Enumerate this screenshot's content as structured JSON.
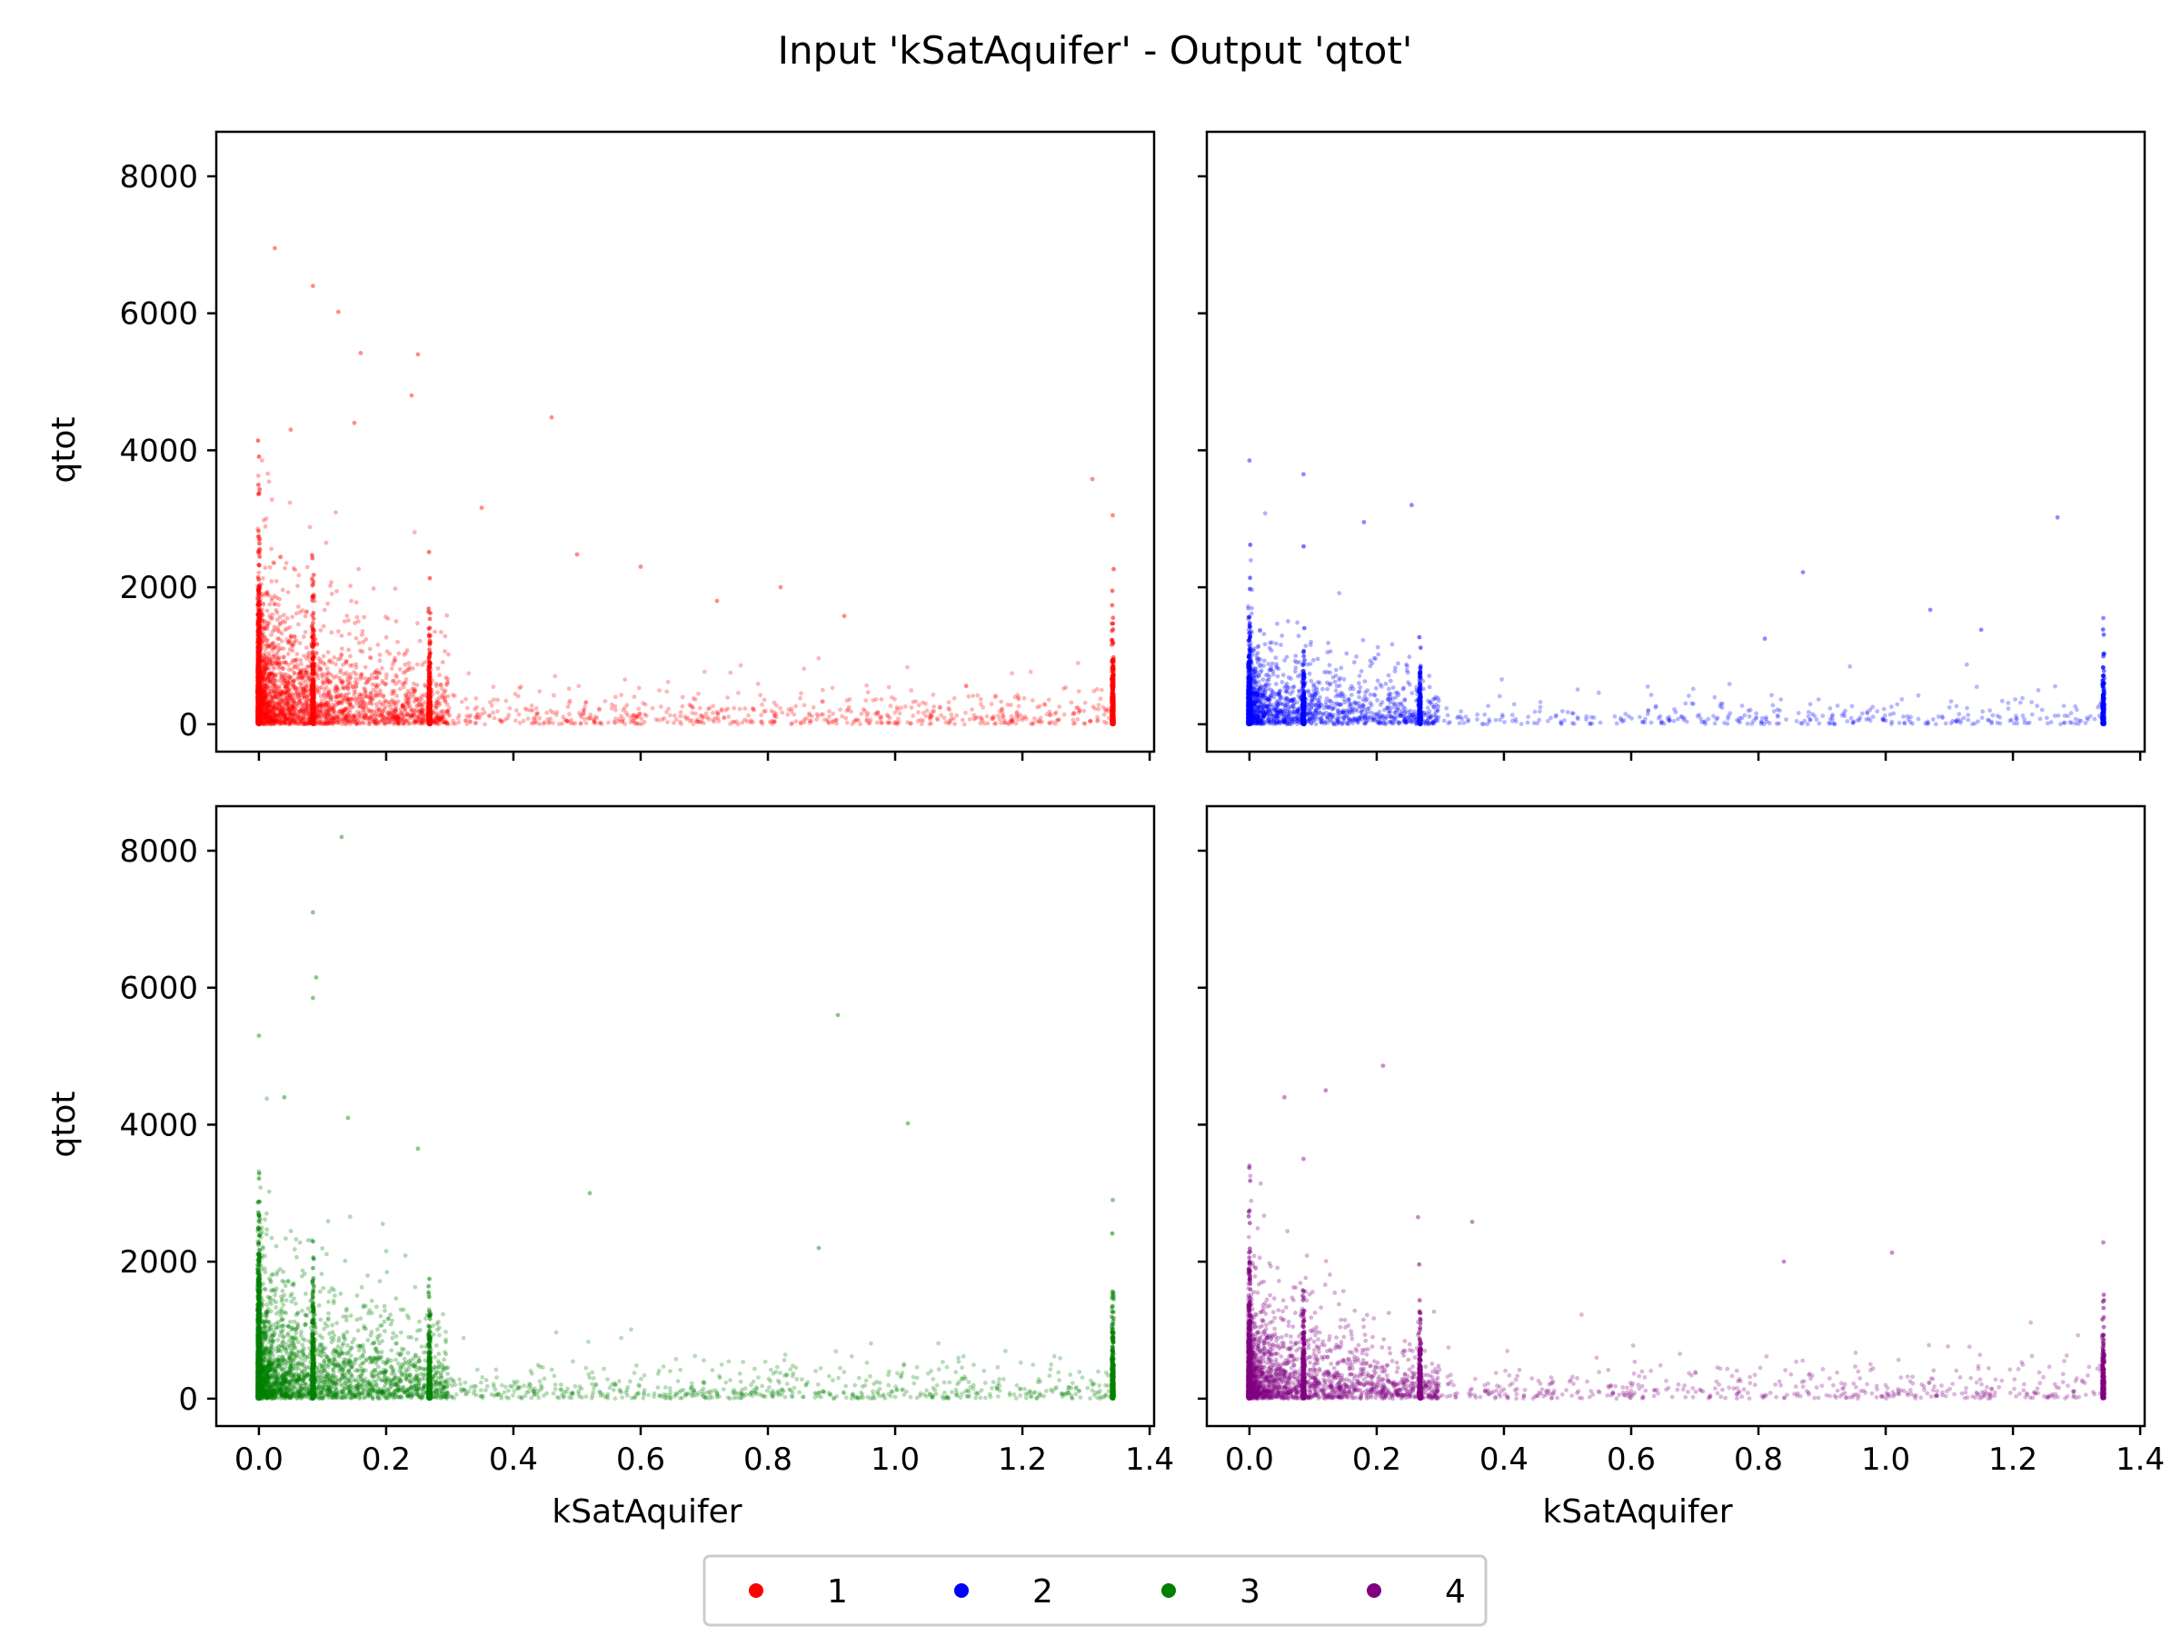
{
  "figure_title": "Input 'kSatAquifer' - Output 'qtot'",
  "legend": {
    "placement": "bottom-center",
    "entries": [
      {
        "label": "1",
        "color": "#ff0000"
      },
      {
        "label": "2",
        "color": "#0000ff"
      },
      {
        "label": "3",
        "color": "#008000"
      },
      {
        "label": "4",
        "color": "#800080"
      }
    ]
  },
  "chart_data": [
    {
      "type": "scatter",
      "series_name": "1",
      "color": "#ff0000",
      "position": "top-left",
      "xlabel": "",
      "ylabel": "qtot",
      "xlim": [
        -0.067,
        1.407
      ],
      "ylim": [
        -400,
        8650
      ],
      "x_ticks": [
        0.0,
        0.2,
        0.4,
        0.6,
        0.8,
        1.0,
        1.2,
        1.4
      ],
      "x_tick_labels": [],
      "y_ticks": [
        0,
        2000,
        4000,
        6000,
        8000
      ],
      "y_tick_labels": [
        "0",
        "2000",
        "4000",
        "6000",
        "8000"
      ],
      "stripes_x": [
        0.0,
        0.085,
        0.268,
        1.342
      ],
      "notable_points": [
        [
          0.025,
          6950
        ],
        [
          0.085,
          6400
        ],
        [
          0.125,
          6020
        ],
        [
          0.16,
          5420
        ],
        [
          0.25,
          5400
        ],
        [
          0.24,
          4800
        ],
        [
          0.46,
          4480
        ],
        [
          0.05,
          4300
        ],
        [
          0.15,
          4400
        ],
        [
          0.35,
          3160
        ],
        [
          0.6,
          2300
        ],
        [
          1.31,
          3580
        ],
        [
          1.342,
          3050
        ],
        [
          0.82,
          2000
        ],
        [
          0.92,
          1580
        ],
        [
          0.72,
          1800
        ],
        [
          0.5,
          2480
        ]
      ]
    },
    {
      "type": "scatter",
      "series_name": "2",
      "color": "#0000ff",
      "position": "top-right",
      "xlabel": "",
      "ylabel": "",
      "xlim": [
        -0.067,
        1.407
      ],
      "ylim": [
        -400,
        8650
      ],
      "x_ticks": [
        0.0,
        0.2,
        0.4,
        0.6,
        0.8,
        1.0,
        1.2,
        1.4
      ],
      "x_tick_labels": [],
      "y_ticks": [
        0,
        2000,
        4000,
        6000,
        8000
      ],
      "y_tick_labels": [],
      "stripes_x": [
        0.0,
        0.085,
        0.268,
        1.342
      ],
      "notable_points": [
        [
          0.0,
          3850
        ],
        [
          0.085,
          3650
        ],
        [
          0.255,
          3200
        ],
        [
          0.18,
          2950
        ],
        [
          0.87,
          2220
        ],
        [
          1.27,
          3020
        ],
        [
          1.07,
          1670
        ],
        [
          1.15,
          1380
        ],
        [
          1.342,
          1550
        ],
        [
          0.81,
          1250
        ]
      ]
    },
    {
      "type": "scatter",
      "series_name": "3",
      "color": "#008000",
      "position": "bottom-left",
      "xlabel": "kSatAquifer",
      "ylabel": "qtot",
      "xlim": [
        -0.067,
        1.407
      ],
      "ylim": [
        -400,
        8650
      ],
      "x_ticks": [
        0.0,
        0.2,
        0.4,
        0.6,
        0.8,
        1.0,
        1.2,
        1.4
      ],
      "x_tick_labels": [
        "0.0",
        "0.2",
        "0.4",
        "0.6",
        "0.8",
        "1.0",
        "1.2",
        "1.4"
      ],
      "y_ticks": [
        0,
        2000,
        4000,
        6000,
        8000
      ],
      "y_tick_labels": [
        "0",
        "2000",
        "4000",
        "6000",
        "8000"
      ],
      "stripes_x": [
        0.0,
        0.085,
        0.268,
        1.342
      ],
      "notable_points": [
        [
          0.13,
          8200
        ],
        [
          0.085,
          7100
        ],
        [
          0.09,
          6150
        ],
        [
          0.085,
          5850
        ],
        [
          0.0,
          5300
        ],
        [
          0.91,
          5600
        ],
        [
          1.02,
          4020
        ],
        [
          0.04,
          4400
        ],
        [
          0.14,
          4100
        ],
        [
          0.25,
          3650
        ],
        [
          0.52,
          3000
        ],
        [
          0.88,
          2200
        ],
        [
          1.342,
          2900
        ]
      ]
    },
    {
      "type": "scatter",
      "series_name": "4",
      "color": "#800080",
      "position": "bottom-right",
      "xlabel": "kSatAquifer",
      "ylabel": "",
      "xlim": [
        -0.067,
        1.407
      ],
      "ylim": [
        -400,
        8650
      ],
      "x_ticks": [
        0.0,
        0.2,
        0.4,
        0.6,
        0.8,
        1.0,
        1.2,
        1.4
      ],
      "x_tick_labels": [
        "0.0",
        "0.2",
        "0.4",
        "0.6",
        "0.8",
        "1.0",
        "1.2",
        "1.4"
      ],
      "y_ticks": [
        0,
        2000,
        4000,
        6000,
        8000
      ],
      "y_tick_labels": [],
      "stripes_x": [
        0.0,
        0.085,
        0.268,
        1.342
      ],
      "notable_points": [
        [
          0.21,
          4860
        ],
        [
          0.12,
          4500
        ],
        [
          0.055,
          4400
        ],
        [
          0.085,
          3500
        ],
        [
          0.0,
          3400
        ],
        [
          0.265,
          2650
        ],
        [
          0.35,
          2580
        ],
        [
          0.84,
          2000
        ],
        [
          1.01,
          2130
        ],
        [
          1.342,
          2280
        ]
      ]
    }
  ]
}
